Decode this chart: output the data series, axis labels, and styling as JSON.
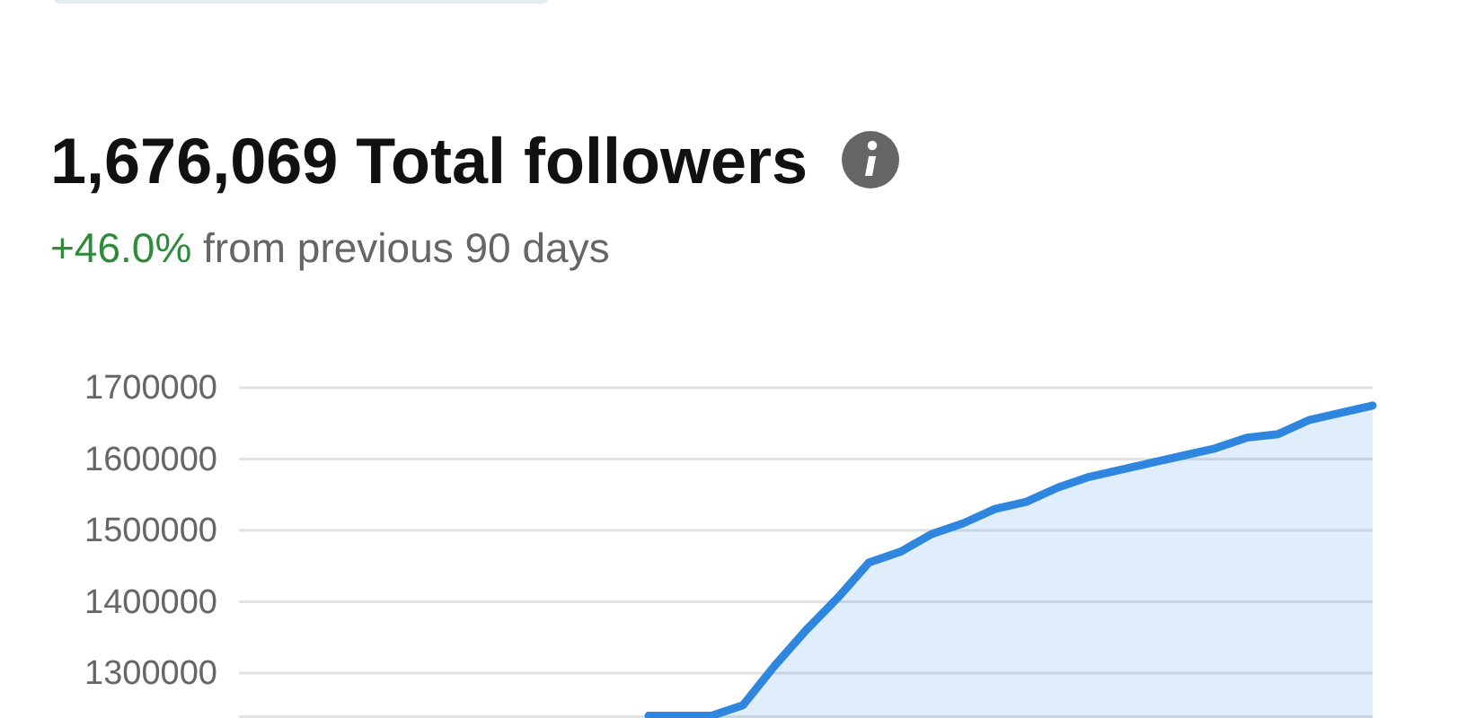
{
  "chart_data": {
    "type": "area",
    "title": "1,676,069 Total followers",
    "subtitle": "+46.0% from previous 90 days",
    "categories": [
      null,
      null,
      null,
      null,
      null,
      null,
      null,
      null,
      null,
      null,
      null,
      null,
      null,
      null,
      null,
      null,
      null,
      null,
      null,
      null,
      null,
      null,
      null,
      null
    ],
    "series": [
      {
        "color": "#2e86de",
        "values": [
          1240000,
          1240000,
          1240000,
          1255000,
          1310000,
          1360000,
          1405000,
          1455000,
          1470000,
          1495000,
          1510000,
          1530000,
          1540000,
          1560000,
          1575000,
          1585000,
          1595000,
          1605000,
          1615000,
          1630000,
          1635000,
          1655000,
          1665000,
          1675000
        ]
      }
    ],
    "ylim": [
      1237000,
      1700000
    ],
    "yticks": [
      1300000,
      1400000,
      1500000,
      1600000,
      1700000
    ],
    "tick_labels": "y",
    "grid": "y"
  }
}
